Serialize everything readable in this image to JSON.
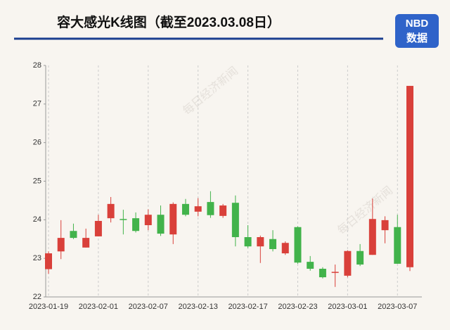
{
  "chart_data": {
    "type": "candlestick",
    "title": "容大感光K线图（截至2023.03.08日）",
    "categories": [
      "2023-01-19",
      null,
      null,
      null,
      "2023-02-01",
      null,
      null,
      null,
      "2023-02-07",
      null,
      null,
      null,
      "2023-02-13",
      null,
      null,
      null,
      "2023-02-17",
      null,
      null,
      null,
      "2023-02-23",
      null,
      null,
      null,
      "2023-03-01",
      null,
      null,
      null,
      "2023-03-07",
      null
    ],
    "open": [
      22.72,
      23.18,
      23.71,
      23.28,
      23.57,
      24.04,
      24.02,
      24.04,
      23.86,
      24.13,
      23.62,
      24.41,
      24.21,
      24.46,
      24.1,
      24.44,
      23.55,
      23.31,
      23.5,
      23.13,
      23.81,
      22.91,
      22.73,
      22.63,
      22.55,
      23.19,
      23.09,
      23.73,
      23.81,
      22.77
    ],
    "high": [
      23.18,
      23.99,
      23.9,
      23.77,
      24.13,
      24.59,
      24.26,
      24.19,
      24.27,
      24.37,
      24.45,
      24.54,
      24.56,
      24.74,
      24.41,
      24.63,
      23.86,
      23.59,
      23.73,
      23.44,
      23.83,
      23.06,
      22.77,
      22.84,
      23.21,
      23.37,
      24.55,
      24.09,
      24.13,
      27.47
    ],
    "low": [
      22.6,
      22.98,
      23.5,
      23.28,
      23.57,
      23.93,
      23.62,
      23.67,
      23.73,
      23.58,
      23.37,
      24.09,
      24.09,
      24.05,
      24.05,
      23.31,
      23.27,
      22.88,
      23.18,
      23.09,
      22.86,
      22.68,
      22.48,
      22.26,
      22.51,
      22.8,
      23.09,
      23.39,
      22.86,
      22.67
    ],
    "close": [
      23.13,
      23.53,
      23.53,
      23.53,
      23.97,
      24.41,
      24.0,
      23.71,
      24.13,
      23.64,
      24.41,
      24.13,
      24.35,
      24.12,
      24.37,
      23.55,
      23.31,
      23.55,
      23.24,
      23.4,
      22.89,
      22.73,
      22.51,
      22.65,
      23.19,
      22.84,
      24.02,
      23.99,
      22.86,
      27.47
    ],
    "up_color": "#d9403a",
    "down_color": "#42b34b",
    "ylim": [
      22,
      28
    ],
    "yticks": [
      22,
      23,
      24,
      25,
      26,
      27,
      28
    ]
  },
  "logo": {
    "top": "NBD",
    "bottom": "数据"
  },
  "watermark": "每日经济新闻"
}
